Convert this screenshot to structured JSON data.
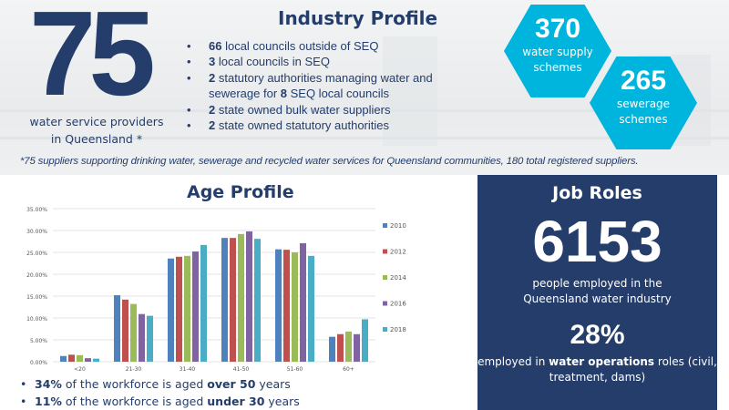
{
  "hero": {
    "number": "75",
    "caption": "water service providers in Queensland *"
  },
  "industry": {
    "title": "Industry Profile",
    "items": [
      {
        "bold": "66",
        "text": " local councils outside of SEQ"
      },
      {
        "bold": "3",
        "text": " local councils in SEQ"
      },
      {
        "bold": "2",
        "text": " statutory authorities managing water and sewerage for ",
        "bold2": "8",
        "text2": " SEQ local councils"
      },
      {
        "bold": "2",
        "text": " state owned bulk water suppliers"
      },
      {
        "bold": "2",
        "text": " state owned statutory authorities"
      }
    ]
  },
  "hex": [
    {
      "number": "370",
      "caption": "water supply schemes"
    },
    {
      "number": "265",
      "caption": "sewerage schemes"
    }
  ],
  "footnote": "*75 suppliers supporting drinking water, sewerage and recycled water services for Queensland communities, 180 total registered suppliers.",
  "age_bullets": [
    {
      "a": "34%",
      "b": " of the workforce is aged ",
      "c": "over 50",
      "d": " years"
    },
    {
      "a": "11%",
      "b": " of the workforce is aged ",
      "c": "under 30",
      "d": " years"
    }
  ],
  "jobs": {
    "title": "Job Roles",
    "number": "6153",
    "caption": "people employed in the Queensland water industry",
    "pct": "28%",
    "pcap_a": "employed in ",
    "pcap_b": "water operations",
    "pcap_c": " roles (civil, treatment, dams)"
  },
  "colors": {
    "navy": "#243d6b",
    "cyan": "#00b5dd"
  },
  "chart_data": {
    "type": "bar",
    "title": "Age Profile",
    "xlabel": "",
    "ylabel": "",
    "ylim": [
      0,
      35
    ],
    "yticks": [
      "0.00%",
      "5.00%",
      "10.00%",
      "15.00%",
      "20.00%",
      "25.00%",
      "30.00%",
      "35.00%"
    ],
    "categories": [
      "<20",
      "21-30",
      "31-40",
      "41-50",
      "51-60",
      "60+"
    ],
    "legend_position": "right",
    "grid": true,
    "series": [
      {
        "name": "2010",
        "color": "#4f81bd",
        "values": [
          1.3,
          15.2,
          23.6,
          28.3,
          25.7,
          5.7
        ]
      },
      {
        "name": "2012",
        "color": "#c0504d",
        "values": [
          1.6,
          14.2,
          24.0,
          28.3,
          25.6,
          6.3
        ]
      },
      {
        "name": "2014",
        "color": "#9bbb59",
        "values": [
          1.5,
          13.2,
          24.2,
          29.2,
          25.0,
          6.9
        ]
      },
      {
        "name": "2016",
        "color": "#8064a2",
        "values": [
          0.8,
          10.9,
          25.2,
          29.8,
          27.1,
          6.3
        ]
      },
      {
        "name": "2018",
        "color": "#4bacc6",
        "values": [
          0.7,
          10.5,
          26.7,
          28.1,
          24.2,
          9.7
        ]
      }
    ]
  }
}
